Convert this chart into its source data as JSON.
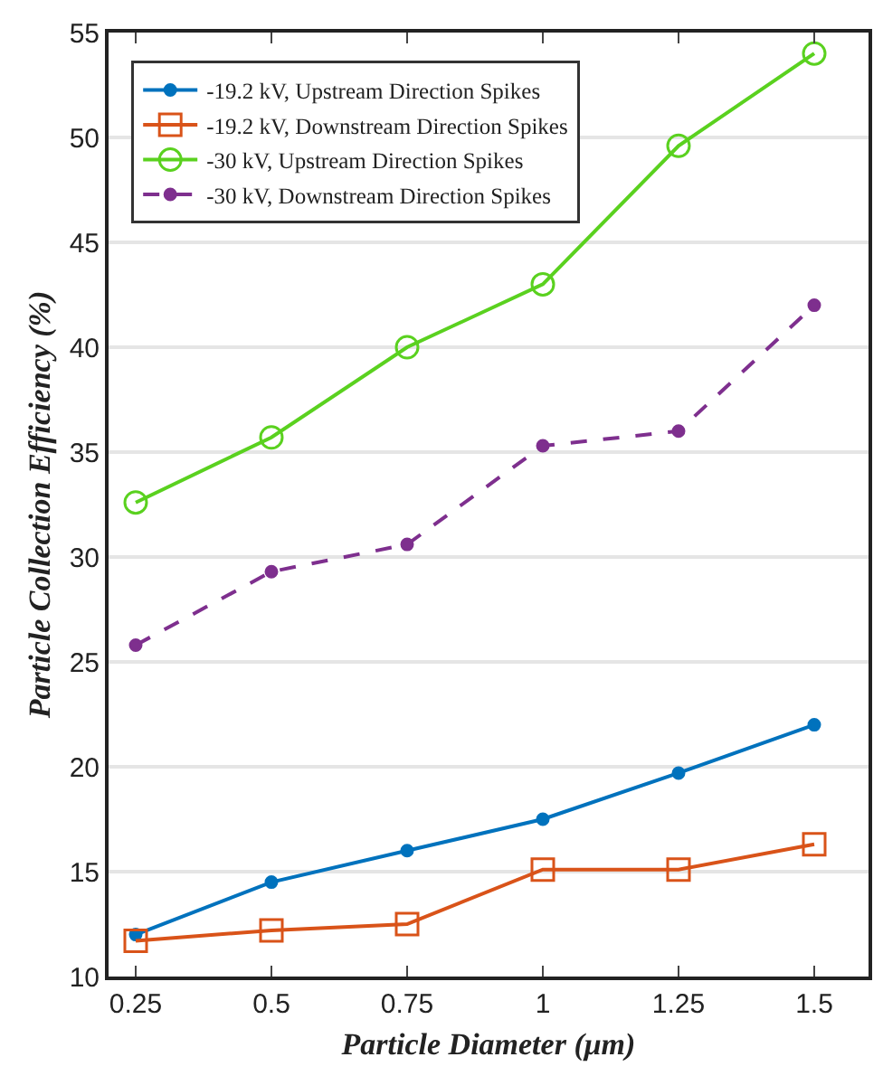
{
  "chart_data": {
    "type": "line",
    "xlabel": "Particle Diameter (μm)",
    "ylabel": "Particle Collection Efficiency (%)",
    "x": [
      0.25,
      0.5,
      0.75,
      1,
      1.25,
      1.5
    ],
    "series": [
      {
        "name": "-19.2 kV, Upstream Direction Spikes",
        "color": "#0072bd",
        "marker": "circle",
        "line_style": "solid",
        "values": [
          12,
          14.5,
          16,
          17.5,
          19.7,
          22
        ]
      },
      {
        "name": "-19.2 kV, Downstream Direction Spikes",
        "color": "#d95319",
        "marker": "square",
        "line_style": "solid",
        "values": [
          11.7,
          12.2,
          12.5,
          15.1,
          15.1,
          16.3
        ]
      },
      {
        "name": "-30 kV, Upstream Direction Spikes",
        "color": "#5ad11f",
        "marker": "circle",
        "line_style": "solid",
        "values": [
          32.6,
          35.7,
          40,
          43,
          49.6,
          54
        ]
      },
      {
        "name": "-30 kV, Downstream Direction Spikes",
        "color": "#7e2f8e",
        "marker": "circle",
        "line_style": "dashed",
        "values": [
          25.8,
          29.3,
          30.6,
          35.3,
          36,
          42
        ]
      }
    ],
    "xlim": [
      0.2,
      1.6
    ],
    "xticks": [
      0.25,
      0.5,
      0.75,
      1,
      1.25,
      1.5
    ],
    "ylim": [
      10,
      55
    ],
    "yticks": [
      10,
      15,
      20,
      25,
      30,
      35,
      40,
      45,
      50,
      55
    ],
    "grid": "y",
    "legend": "top left"
  }
}
